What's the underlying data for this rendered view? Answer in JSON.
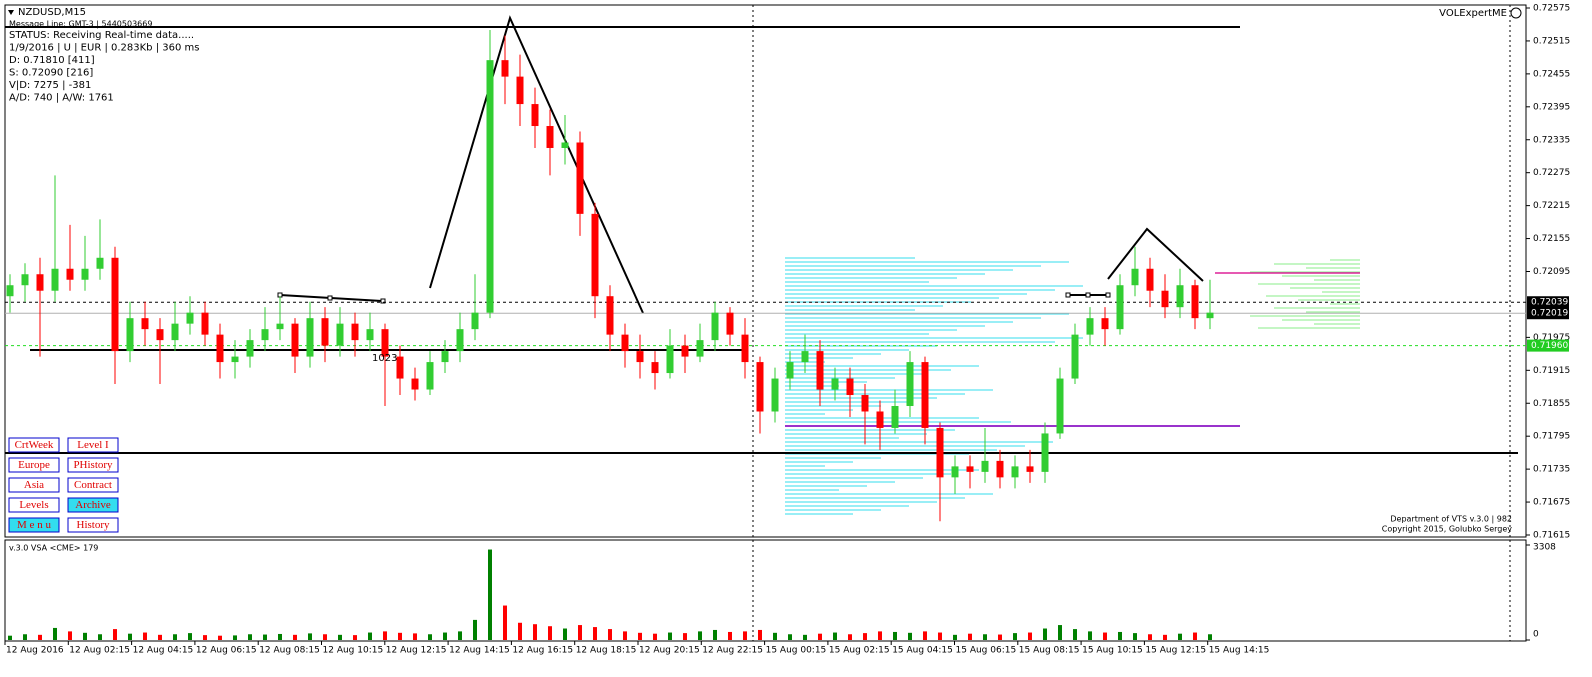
{
  "header": {
    "symbol": "NZDUSD,M15",
    "message": "Message Line: GMT-3 | 5440503669"
  },
  "status": {
    "lines": [
      "STATUS:  Receiving Real-time data.....",
      "1/9/2016 | U | EUR | 0.283Kb | 360 ms",
      "D: 0.71810  [411]",
      "S: 0.72090  [216]",
      "V|D: 7275 | -381",
      "A/D: 740 | A/W: 1761"
    ]
  },
  "indicator": "VOLExpertME",
  "pattern_label": "1023",
  "buttons": [
    [
      "CrtWeek",
      "Level I"
    ],
    [
      "Europe",
      "PHistory"
    ],
    [
      "Asia",
      "Contract"
    ],
    [
      "Levels",
      "Archive"
    ],
    [
      "M e n u",
      "History"
    ]
  ],
  "footer": [
    "Department of VTS  v.3.0 | 982",
    "Copyright 2015, Golubko Sergey"
  ],
  "chart_data": {
    "type": "candlestick",
    "up_color": "#32cd32",
    "down_color": "#ff0000",
    "ylim": [
      0.71615,
      0.72575
    ],
    "yticks": [
      0.72575,
      0.72515,
      0.72455,
      0.72395,
      0.72335,
      0.72275,
      0.72215,
      0.72155,
      0.72095,
      0.71975,
      0.71915,
      0.71855,
      0.71795,
      0.71735,
      0.71675,
      0.71615
    ],
    "x_labels": [
      "12 Aug 2016",
      "12 Aug 02:15",
      "12 Aug 04:15",
      "12 Aug 06:15",
      "12 Aug 08:15",
      "12 Aug 10:15",
      "12 Aug 12:15",
      "12 Aug 14:15",
      "12 Aug 16:15",
      "12 Aug 18:15",
      "12 Aug 20:15",
      "12 Aug 22:15",
      "15 Aug 00:15",
      "15 Aug 02:15",
      "15 Aug 04:15",
      "15 Aug 06:15",
      "15 Aug 08:15",
      "15 Aug 10:15",
      "15 Aug 12:15",
      "15 Aug 14:15"
    ],
    "levels": [
      {
        "value": 0.72039,
        "label": "0.72039",
        "color": "#000000",
        "label_color": "#000000",
        "dashed": true
      },
      {
        "value": 0.72019,
        "label": "0.72019",
        "color": "#b0b0b0",
        "label_color": "#000000",
        "dashed": false
      },
      {
        "value": 0.7196,
        "label": "0.71960",
        "color": "#22dd22",
        "label_color": "#22cc22",
        "dashed": true
      }
    ],
    "candles": [
      [
        0.7205,
        0.7209,
        0.7202,
        0.7207
      ],
      [
        0.7207,
        0.7211,
        0.7204,
        0.7209
      ],
      [
        0.7209,
        0.7212,
        0.7194,
        0.7206
      ],
      [
        0.7206,
        0.7227,
        0.7204,
        0.721
      ],
      [
        0.721,
        0.7218,
        0.7206,
        0.7208
      ],
      [
        0.7208,
        0.7216,
        0.7206,
        0.721
      ],
      [
        0.721,
        0.7219,
        0.7208,
        0.7212
      ],
      [
        0.7212,
        0.7214,
        0.7189,
        0.7195
      ],
      [
        0.7195,
        0.7204,
        0.7193,
        0.7201
      ],
      [
        0.7201,
        0.7204,
        0.7196,
        0.7199
      ],
      [
        0.7199,
        0.7201,
        0.7189,
        0.7197
      ],
      [
        0.7197,
        0.7204,
        0.7195,
        0.72
      ],
      [
        0.72,
        0.7205,
        0.7198,
        0.7202
      ],
      [
        0.7202,
        0.7204,
        0.7196,
        0.7198
      ],
      [
        0.7198,
        0.72,
        0.719,
        0.7193
      ],
      [
        0.7193,
        0.7197,
        0.719,
        0.7194
      ],
      [
        0.7194,
        0.7199,
        0.7192,
        0.7197
      ],
      [
        0.7197,
        0.7203,
        0.7195,
        0.7199
      ],
      [
        0.7199,
        0.7205,
        0.7197,
        0.72
      ],
      [
        0.72,
        0.7201,
        0.7191,
        0.7194
      ],
      [
        0.7194,
        0.7204,
        0.7192,
        0.7201
      ],
      [
        0.7201,
        0.7203,
        0.7193,
        0.7196
      ],
      [
        0.7196,
        0.7203,
        0.7194,
        0.72
      ],
      [
        0.72,
        0.7202,
        0.7194,
        0.7197
      ],
      [
        0.7197,
        0.7202,
        0.7195,
        0.7199
      ],
      [
        0.7199,
        0.72,
        0.7185,
        0.7194
      ],
      [
        0.7194,
        0.7196,
        0.7187,
        0.719
      ],
      [
        0.719,
        0.7192,
        0.7186,
        0.7188
      ],
      [
        0.7188,
        0.7195,
        0.7187,
        0.7193
      ],
      [
        0.7193,
        0.7197,
        0.7191,
        0.7195
      ],
      [
        0.7195,
        0.7202,
        0.7193,
        0.7199
      ],
      [
        0.7199,
        0.7209,
        0.7197,
        0.7202
      ],
      [
        0.7202,
        0.72535,
        0.7201,
        0.7248
      ],
      [
        0.7248,
        0.72525,
        0.724,
        0.7245
      ],
      [
        0.7245,
        0.7249,
        0.7236,
        0.724
      ],
      [
        0.724,
        0.7243,
        0.7232,
        0.7236
      ],
      [
        0.7236,
        0.7239,
        0.7227,
        0.7232
      ],
      [
        0.7232,
        0.7238,
        0.7229,
        0.7233
      ],
      [
        0.7233,
        0.7235,
        0.7216,
        0.722
      ],
      [
        0.722,
        0.7222,
        0.7201,
        0.7205
      ],
      [
        0.7205,
        0.7207,
        0.7195,
        0.7198
      ],
      [
        0.7198,
        0.72,
        0.7192,
        0.7195
      ],
      [
        0.7195,
        0.7198,
        0.719,
        0.7193
      ],
      [
        0.7193,
        0.7195,
        0.7188,
        0.7191
      ],
      [
        0.7191,
        0.7199,
        0.719,
        0.7196
      ],
      [
        0.7196,
        0.7198,
        0.7191,
        0.7194
      ],
      [
        0.7194,
        0.72,
        0.7193,
        0.7197
      ],
      [
        0.7197,
        0.7204,
        0.7195,
        0.7202
      ],
      [
        0.7202,
        0.7203,
        0.7196,
        0.7198
      ],
      [
        0.7198,
        0.7201,
        0.719,
        0.7193
      ],
      [
        0.7193,
        0.7194,
        0.718,
        0.7184
      ],
      [
        0.7184,
        0.7192,
        0.7182,
        0.719
      ],
      [
        0.719,
        0.7195,
        0.7188,
        0.7193
      ],
      [
        0.7193,
        0.7198,
        0.7191,
        0.7195
      ],
      [
        0.7195,
        0.7197,
        0.7185,
        0.7188
      ],
      [
        0.7188,
        0.7192,
        0.7186,
        0.719
      ],
      [
        0.719,
        0.7192,
        0.7183,
        0.7187
      ],
      [
        0.7187,
        0.7189,
        0.7178,
        0.7184
      ],
      [
        0.7184,
        0.7186,
        0.7177,
        0.7181
      ],
      [
        0.7181,
        0.7188,
        0.718,
        0.7185
      ],
      [
        0.7185,
        0.7195,
        0.7183,
        0.7193
      ],
      [
        0.7193,
        0.7194,
        0.7178,
        0.7181
      ],
      [
        0.7181,
        0.7182,
        0.7164,
        0.7172
      ],
      [
        0.7172,
        0.7176,
        0.7169,
        0.7174
      ],
      [
        0.7174,
        0.7176,
        0.717,
        0.7173
      ],
      [
        0.7173,
        0.7181,
        0.7171,
        0.7175
      ],
      [
        0.7175,
        0.7177,
        0.717,
        0.7172
      ],
      [
        0.7172,
        0.7176,
        0.717,
        0.7174
      ],
      [
        0.7174,
        0.7177,
        0.7171,
        0.7173
      ],
      [
        0.7173,
        0.7182,
        0.7171,
        0.718
      ],
      [
        0.718,
        0.7192,
        0.7179,
        0.719
      ],
      [
        0.719,
        0.72,
        0.7189,
        0.7198
      ],
      [
        0.7198,
        0.7203,
        0.7196,
        0.7201
      ],
      [
        0.7201,
        0.7203,
        0.7196,
        0.7199
      ],
      [
        0.7199,
        0.7209,
        0.7198,
        0.7207
      ],
      [
        0.7207,
        0.7214,
        0.7205,
        0.721
      ],
      [
        0.721,
        0.7212,
        0.7203,
        0.7206
      ],
      [
        0.7206,
        0.7209,
        0.7201,
        0.7203
      ],
      [
        0.7203,
        0.721,
        0.7201,
        0.7207
      ],
      [
        0.7207,
        0.7208,
        0.7199,
        0.7201
      ],
      [
        0.7201,
        0.7208,
        0.7199,
        0.7202
      ]
    ]
  },
  "volume": {
    "title": "v.3.0 VSA <CME> 179",
    "up_color": "#008000",
    "down_color": "#ff0000",
    "ylim": [
      0,
      3308
    ],
    "yticks": [
      3308,
      0
    ],
    "values": [
      150,
      200,
      180,
      420,
      300,
      250,
      200,
      380,
      220,
      260,
      180,
      200,
      240,
      170,
      150,
      160,
      200,
      190,
      210,
      180,
      230,
      200,
      180,
      170,
      260,
      300,
      250,
      230,
      200,
      260,
      300,
      700,
      3150,
      1200,
      600,
      550,
      480,
      400,
      520,
      450,
      380,
      300,
      250,
      220,
      260,
      240,
      300,
      350,
      280,
      300,
      350,
      250,
      200,
      180,
      220,
      260,
      200,
      240,
      300,
      280,
      250,
      300,
      260,
      180,
      220,
      200,
      190,
      240,
      260,
      400,
      520,
      380,
      300,
      260,
      280,
      240,
      200,
      180,
      220,
      260,
      200
    ]
  }
}
